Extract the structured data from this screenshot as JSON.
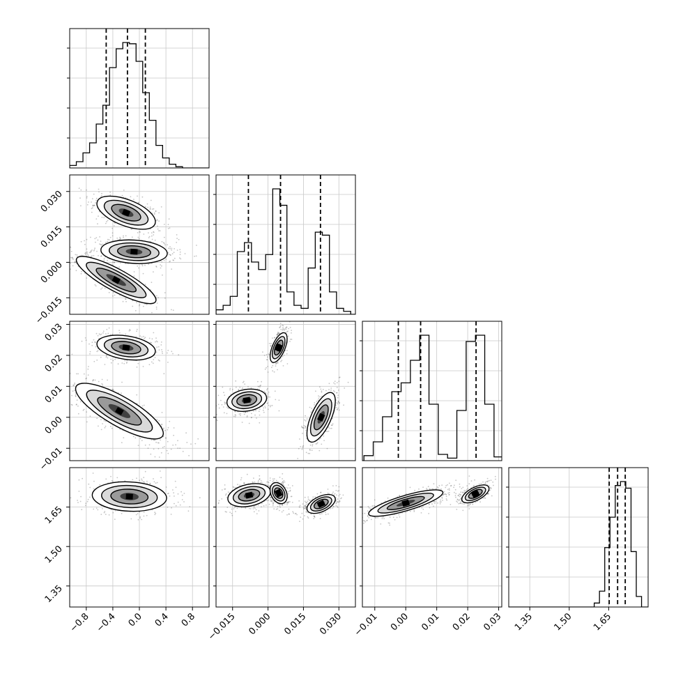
{
  "chart_data": {
    "type": "corner",
    "parameters": [
      "",
      "",
      "",
      ""
    ],
    "grid": true,
    "colors": {
      "hist": "#000000",
      "quantile": "#000000",
      "contour": "#000000",
      "scatter": "#555555",
      "grid": "#c8c8c8"
    },
    "axes": {
      "p0": {
        "lim": [
          -1.05,
          1.05
        ],
        "ticks": [
          -0.8,
          -0.4,
          0.0,
          0.4,
          0.8
        ],
        "tick_labels": [
          "−0.8",
          "−0.4",
          "0.0",
          "0.4",
          "0.8"
        ]
      },
      "p1": {
        "lim": [
          -0.022,
          0.037
        ],
        "ticks": [
          -0.015,
          0.0,
          0.015,
          0.03
        ],
        "tick_labels": [
          "−0.015",
          "0.000",
          "0.015",
          "0.030"
        ]
      },
      "p2": {
        "lim": [
          -0.014,
          0.031
        ],
        "ticks": [
          -0.01,
          0.0,
          0.01,
          0.02,
          0.03
        ],
        "tick_labels": [
          "−0.01",
          "0.00",
          "0.01",
          "0.02",
          "0.03"
        ]
      },
      "p3": {
        "lim": [
          1.27,
          1.8
        ],
        "ticks": [
          1.35,
          1.5,
          1.65
        ],
        "tick_labels": [
          "1.35",
          "1.50",
          "1.65"
        ]
      }
    },
    "histograms": [
      {
        "param": 0,
        "bin_centers": [
          -1.0,
          -0.9,
          -0.8,
          -0.7,
          -0.6,
          -0.5,
          -0.4,
          -0.3,
          -0.2,
          -0.1,
          0.0,
          0.1,
          0.2,
          0.3,
          0.4,
          0.5,
          0.6
        ],
        "counts": [
          2,
          5,
          12,
          20,
          35,
          50,
          80,
          95,
          100,
          99,
          85,
          60,
          38,
          18,
          8,
          3,
          1
        ],
        "quantiles": [
          -0.5,
          -0.18,
          0.09
        ]
      },
      {
        "param": 1,
        "bin_centers": [
          -0.0205,
          -0.0175,
          -0.0145,
          -0.0115,
          -0.0085,
          -0.0055,
          -0.0025,
          0.0005,
          0.0035,
          0.0065,
          0.0095,
          0.0125,
          0.0155,
          0.0185,
          0.0215,
          0.0245,
          0.0275,
          0.0305,
          0.0335
        ],
        "counts": [
          3,
          6,
          12,
          42,
          48,
          35,
          30,
          40,
          84,
          73,
          15,
          6,
          4,
          31,
          55,
          53,
          15,
          4,
          2
        ],
        "quantiles": [
          -0.0083,
          0.0053,
          0.0222
        ]
      },
      {
        "param": 2,
        "bin_centers": [
          -0.012,
          -0.009,
          -0.006,
          -0.003,
          0.0,
          0.003,
          0.006,
          0.009,
          0.012,
          0.015,
          0.018,
          0.021,
          0.024,
          0.027,
          0.03
        ],
        "counts": [
          4,
          15,
          35,
          55,
          62,
          80,
          100,
          45,
          5,
          2,
          40,
          95,
          100,
          45,
          3
        ],
        "quantiles": [
          -0.0024,
          0.0048,
          0.0227
        ]
      },
      {
        "param": 3,
        "bin_centers": [
          1.605,
          1.625,
          1.645,
          1.665,
          1.685,
          1.705,
          1.725,
          1.745,
          1.765
        ],
        "counts": [
          3,
          12,
          45,
          68,
          92,
          95,
          90,
          42,
          8
        ],
        "quantiles": [
          1.652,
          1.684,
          1.713
        ]
      }
    ],
    "pairs": [
      {
        "x": 0,
        "y": 1,
        "modes": [
          {
            "cx": -0.2,
            "cy": 0.021,
            "sx": 0.22,
            "sy": 0.0035,
            "rho": -0.55,
            "w": 1.0
          },
          {
            "cx": -0.08,
            "cy": 0.0045,
            "sx": 0.25,
            "sy": 0.0025,
            "rho": -0.15,
            "w": 1.2
          },
          {
            "cx": -0.35,
            "cy": -0.0075,
            "sx": 0.3,
            "sy": 0.005,
            "rho": -0.85,
            "w": 0.9
          }
        ]
      },
      {
        "x": 0,
        "y": 2,
        "modes": [
          {
            "cx": -0.2,
            "cy": 0.0225,
            "sx": 0.22,
            "sy": 0.002,
            "rho": -0.3,
            "w": 0.9
          },
          {
            "cx": -0.3,
            "cy": 0.002,
            "sx": 0.33,
            "sy": 0.0045,
            "rho": -0.8,
            "w": 1.3
          }
        ]
      },
      {
        "x": 0,
        "y": 3,
        "modes": [
          {
            "cx": -0.15,
            "cy": 1.69,
            "sx": 0.28,
            "sy": 0.028,
            "rho": -0.1,
            "w": 1.0
          }
        ]
      },
      {
        "x": 1,
        "y": 2,
        "modes": [
          {
            "cx": 0.0045,
            "cy": 0.0225,
            "sx": 0.0018,
            "sy": 0.0024,
            "rho": 0.6,
            "w": 0.9
          },
          {
            "cx": -0.009,
            "cy": 0.0055,
            "sx": 0.0042,
            "sy": 0.0018,
            "rho": 0.2,
            "w": 1.0
          },
          {
            "cx": 0.0225,
            "cy": 0.0,
            "sx": 0.003,
            "sy": 0.004,
            "rho": 0.65,
            "w": 1.0
          }
        ]
      },
      {
        "x": 1,
        "y": 3,
        "modes": [
          {
            "cx": -0.008,
            "cy": 1.695,
            "sx": 0.0045,
            "sy": 0.022,
            "rho": 0.3,
            "w": 1.0
          },
          {
            "cx": 0.0045,
            "cy": 1.703,
            "sx": 0.0018,
            "sy": 0.02,
            "rho": -0.3,
            "w": 0.9
          },
          {
            "cx": 0.0225,
            "cy": 1.662,
            "sx": 0.003,
            "sy": 0.018,
            "rho": 0.5,
            "w": 1.0
          }
        ]
      },
      {
        "x": 2,
        "y": 3,
        "modes": [
          {
            "cx": 0.0,
            "cy": 1.665,
            "sx": 0.006,
            "sy": 0.025,
            "rho": 0.8,
            "w": 1.4
          },
          {
            "cx": 0.0225,
            "cy": 1.7,
            "sx": 0.0022,
            "sy": 0.017,
            "rho": 0.6,
            "w": 0.9
          }
        ]
      }
    ]
  }
}
